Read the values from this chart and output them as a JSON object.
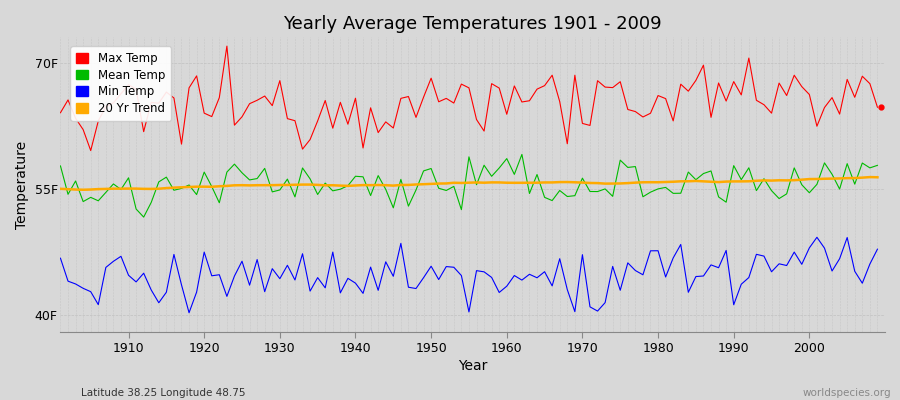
{
  "title": "Yearly Average Temperatures 1901 - 2009",
  "xlabel": "Year",
  "ylabel": "Temperature",
  "start_year": 1901,
  "end_year": 2009,
  "yticks": [
    40,
    55,
    70
  ],
  "ytick_labels": [
    "40F",
    "55F",
    "70F"
  ],
  "ylim": [
    38,
    73
  ],
  "xlim": [
    1901,
    2010
  ],
  "bg_color": "#d8d8d8",
  "plot_bg_color": "#d8d8d8",
  "grid_color": "#bbbbbb",
  "max_color": "#ff0000",
  "mean_color": "#00bb00",
  "min_color": "#0000ff",
  "trend_color": "#ffaa00",
  "legend_labels": [
    "Max Temp",
    "Mean Temp",
    "Min Temp",
    "20 Yr Trend"
  ],
  "footnote_left": "Latitude 38.25 Longitude 48.75",
  "footnote_right": "worldspecies.org",
  "mean_base": 55.2,
  "max_base": 64.5,
  "min_base": 44.5,
  "trend_base": 55.0,
  "trend_slope": 0.008
}
